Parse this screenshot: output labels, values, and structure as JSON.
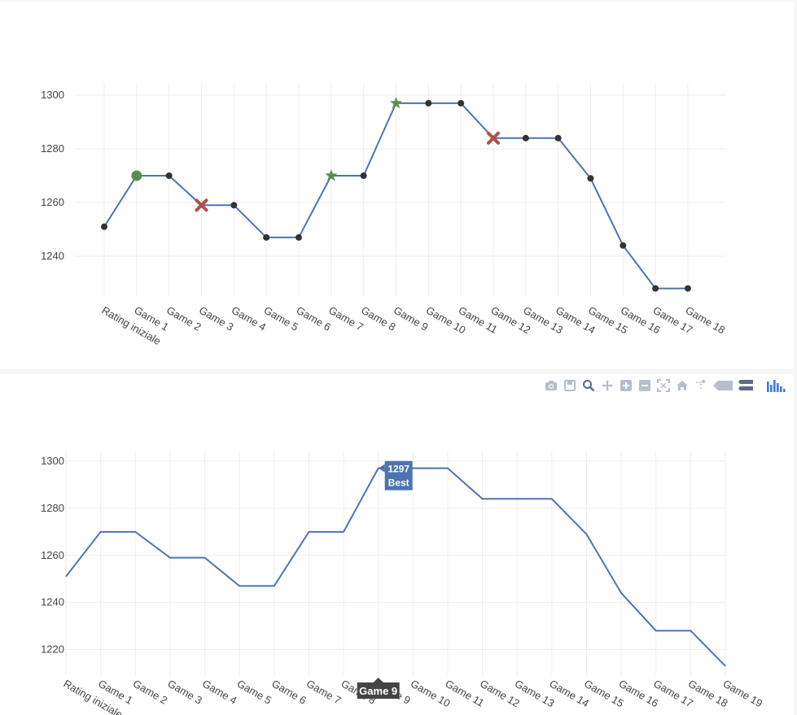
{
  "modebar": {
    "buttons": [
      "camera-icon",
      "save-icon",
      "zoom-icon",
      "pan-icon",
      "zoom-in-icon",
      "zoom-out-icon",
      "autoscale-icon",
      "reset-axes-icon",
      "spike-lines-icon",
      "compare-hover-icon",
      "closest-hover-icon",
      "plotly-logo-icon"
    ]
  },
  "chart_data": [
    {
      "type": "line",
      "title": "",
      "xlabel": "",
      "ylabel": "",
      "categories": [
        "Rating iniziale",
        "Game 1",
        "Game 2",
        "Game 3",
        "Game 4",
        "Game 5",
        "Game 6",
        "Game 7",
        "Game 8",
        "Game 9",
        "Game 10",
        "Game 11",
        "Game 12",
        "Game 13",
        "Game 14",
        "Game 15",
        "Game 16",
        "Game 17",
        "Game 18"
      ],
      "values": [
        1251,
        1270,
        1270,
        1259,
        1259,
        1247,
        1247,
        1270,
        1270,
        1297,
        1297,
        1297,
        1284,
        1284,
        1284,
        1269,
        1244,
        1228,
        1228
      ],
      "markers": [
        "dot",
        "circle-green",
        "dot",
        "x-red",
        "dot",
        "dot",
        "dot",
        "star-green",
        "dot",
        "star-green",
        "dot",
        "dot",
        "x-red",
        "dot",
        "dot",
        "dot",
        "dot",
        "dot",
        "dot"
      ],
      "marker_colors": {
        "dot": "#333333",
        "circle-green": "#5a8f4f",
        "star-green": "#5a8f4f",
        "x-red": "#b05048",
        "line": "#4c74b0"
      },
      "yticks": [
        1240,
        1260,
        1280,
        1300
      ],
      "ylim": [
        1215,
        1305
      ],
      "grid": true
    },
    {
      "type": "line",
      "title": "",
      "xlabel": "",
      "ylabel": "",
      "categories": [
        "Rating iniziale",
        "Game 1",
        "Game 2",
        "Game 3",
        "Game 4",
        "Game 5",
        "Game 6",
        "Game 7",
        "Game 8",
        "Game 9",
        "Game 10",
        "Game 11",
        "Game 12",
        "Game 13",
        "Game 14",
        "Game 15",
        "Game 16",
        "Game 17",
        "Game 18",
        "Game 19"
      ],
      "values": [
        1251,
        1270,
        1270,
        1259,
        1259,
        1247,
        1247,
        1270,
        1270,
        1297,
        1297,
        1297,
        1284,
        1284,
        1284,
        1269,
        1244,
        1228,
        1228,
        1213
      ],
      "yticks": [
        1220,
        1240,
        1260,
        1280,
        1300
      ],
      "ylim": [
        1208,
        1305
      ],
      "grid": true,
      "hover": {
        "index": 9,
        "value_label": "1297",
        "series_label": "Best",
        "x_label": "Game 9"
      }
    }
  ]
}
